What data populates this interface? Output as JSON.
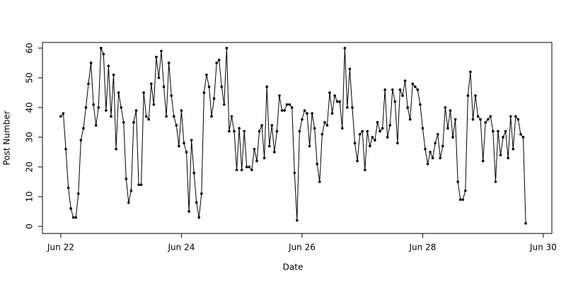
{
  "chart_data": {
    "type": "line",
    "x_label": "Date",
    "y_label": "Post Number",
    "color": "#000000",
    "x": [
      0,
      1,
      2,
      3,
      4,
      5,
      6,
      7,
      8,
      9,
      10,
      11,
      12,
      13,
      14,
      15,
      16,
      17,
      18,
      19,
      20,
      21,
      22,
      23,
      24,
      25,
      26,
      27,
      28,
      29,
      30,
      31,
      32,
      33,
      34,
      35,
      36,
      37,
      38,
      39,
      40,
      41,
      42,
      43,
      44,
      45,
      46,
      47,
      48,
      49,
      50,
      51,
      52,
      53,
      54,
      55,
      56,
      57,
      58,
      59,
      60,
      61,
      62,
      63,
      64,
      65,
      66,
      67,
      68,
      69,
      70,
      71,
      72,
      73,
      74,
      75,
      76,
      77,
      78,
      79,
      80,
      81,
      82,
      83,
      84,
      85,
      86,
      87,
      88,
      89,
      90,
      91,
      92,
      93,
      94,
      95,
      96,
      97,
      98,
      99,
      100,
      101,
      102,
      103,
      104,
      105,
      106,
      107,
      108,
      109,
      110,
      111,
      112,
      113,
      114,
      115,
      116,
      117,
      118,
      119,
      120,
      121,
      122,
      123,
      124,
      125,
      126,
      127,
      128,
      129,
      130,
      131,
      132,
      133,
      134,
      135,
      136,
      137,
      138,
      139,
      140,
      141,
      142,
      143,
      144,
      145,
      146,
      147,
      148,
      149,
      150,
      151,
      152,
      153,
      154,
      155,
      156,
      157,
      158,
      159,
      160,
      161,
      162,
      163,
      164,
      165,
      166,
      167,
      168,
      169,
      170,
      171,
      172,
      173,
      174,
      175,
      176,
      177,
      178,
      179,
      180,
      181,
      182,
      183,
      184,
      185
    ],
    "values": [
      37,
      38,
      26,
      13,
      6,
      3,
      3,
      11,
      29,
      33,
      40,
      48,
      55,
      41,
      34,
      40,
      60,
      58,
      39,
      54,
      37,
      51,
      26,
      45,
      40,
      35,
      16,
      8,
      12,
      35,
      39,
      14,
      14,
      45,
      37,
      36,
      48,
      41,
      57,
      50,
      59,
      47,
      37,
      55,
      44,
      37,
      34,
      27,
      39,
      28,
      25,
      5,
      29,
      18,
      8,
      3,
      11,
      45,
      51,
      47,
      37,
      43,
      55,
      56,
      47,
      41,
      60,
      32,
      37,
      32,
      19,
      33,
      19,
      32,
      20,
      20,
      19,
      26,
      22,
      32,
      34,
      23,
      47,
      27,
      34,
      25,
      32,
      44,
      39,
      39,
      41,
      41,
      40,
      18,
      2,
      32,
      36,
      39,
      38,
      27,
      38,
      33,
      21,
      15,
      31,
      35,
      34,
      45,
      38,
      44,
      42,
      42,
      33,
      60,
      40,
      53,
      40,
      28,
      22,
      31,
      32,
      19,
      32,
      27,
      30,
      29,
      35,
      32,
      33,
      46,
      30,
      34,
      46,
      42,
      28,
      46,
      44,
      49,
      40,
      36,
      48,
      47,
      46,
      41,
      33,
      26,
      21,
      25,
      23,
      28,
      31,
      23,
      27,
      40,
      33,
      39,
      30,
      36,
      15,
      9,
      9,
      12,
      44,
      52,
      36,
      44,
      37,
      36,
      22,
      35,
      36,
      37,
      32,
      15,
      32,
      24,
      30,
      32,
      23,
      37,
      26,
      37,
      36,
      31,
      30,
      1
    ],
    "xlim": [
      -7.3,
      195.4
    ],
    "xticks": [
      {
        "value": 0,
        "label": "Jun 22"
      },
      {
        "value": 48,
        "label": "Jun 24"
      },
      {
        "value": 96,
        "label": "Jun 26"
      },
      {
        "value": 144,
        "label": "Jun 28"
      },
      {
        "value": 192,
        "label": "Jun 30"
      }
    ],
    "ylim": [
      -2.4,
      61.9
    ],
    "yticks": [
      0,
      10,
      20,
      30,
      40,
      50,
      60
    ]
  }
}
